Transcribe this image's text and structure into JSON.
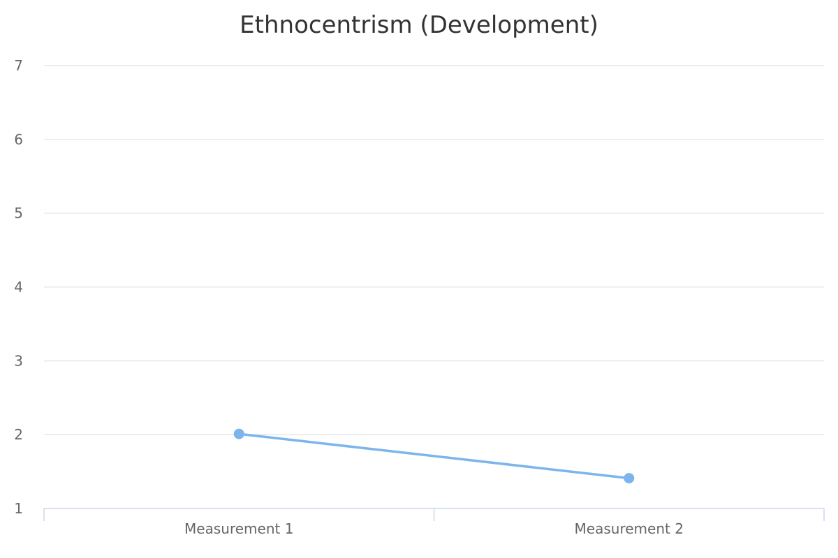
{
  "chart_data": {
    "type": "line",
    "title": "Ethnocentrism (Development)",
    "xlabel": "",
    "ylabel": "",
    "categories": [
      "Measurement 1",
      "Measurement 2"
    ],
    "y_ticks": [
      1,
      2,
      3,
      4,
      5,
      6,
      7
    ],
    "ylim": [
      1,
      7
    ],
    "grid": true,
    "legend": "none",
    "series": [
      {
        "values": [
          2.01,
          1.41
        ],
        "color": "#7cb5ec"
      }
    ]
  },
  "colors": {
    "grid": "#e6e6e6",
    "axis": "#ccd6eb",
    "title": "#333333",
    "labels": "#666666"
  }
}
